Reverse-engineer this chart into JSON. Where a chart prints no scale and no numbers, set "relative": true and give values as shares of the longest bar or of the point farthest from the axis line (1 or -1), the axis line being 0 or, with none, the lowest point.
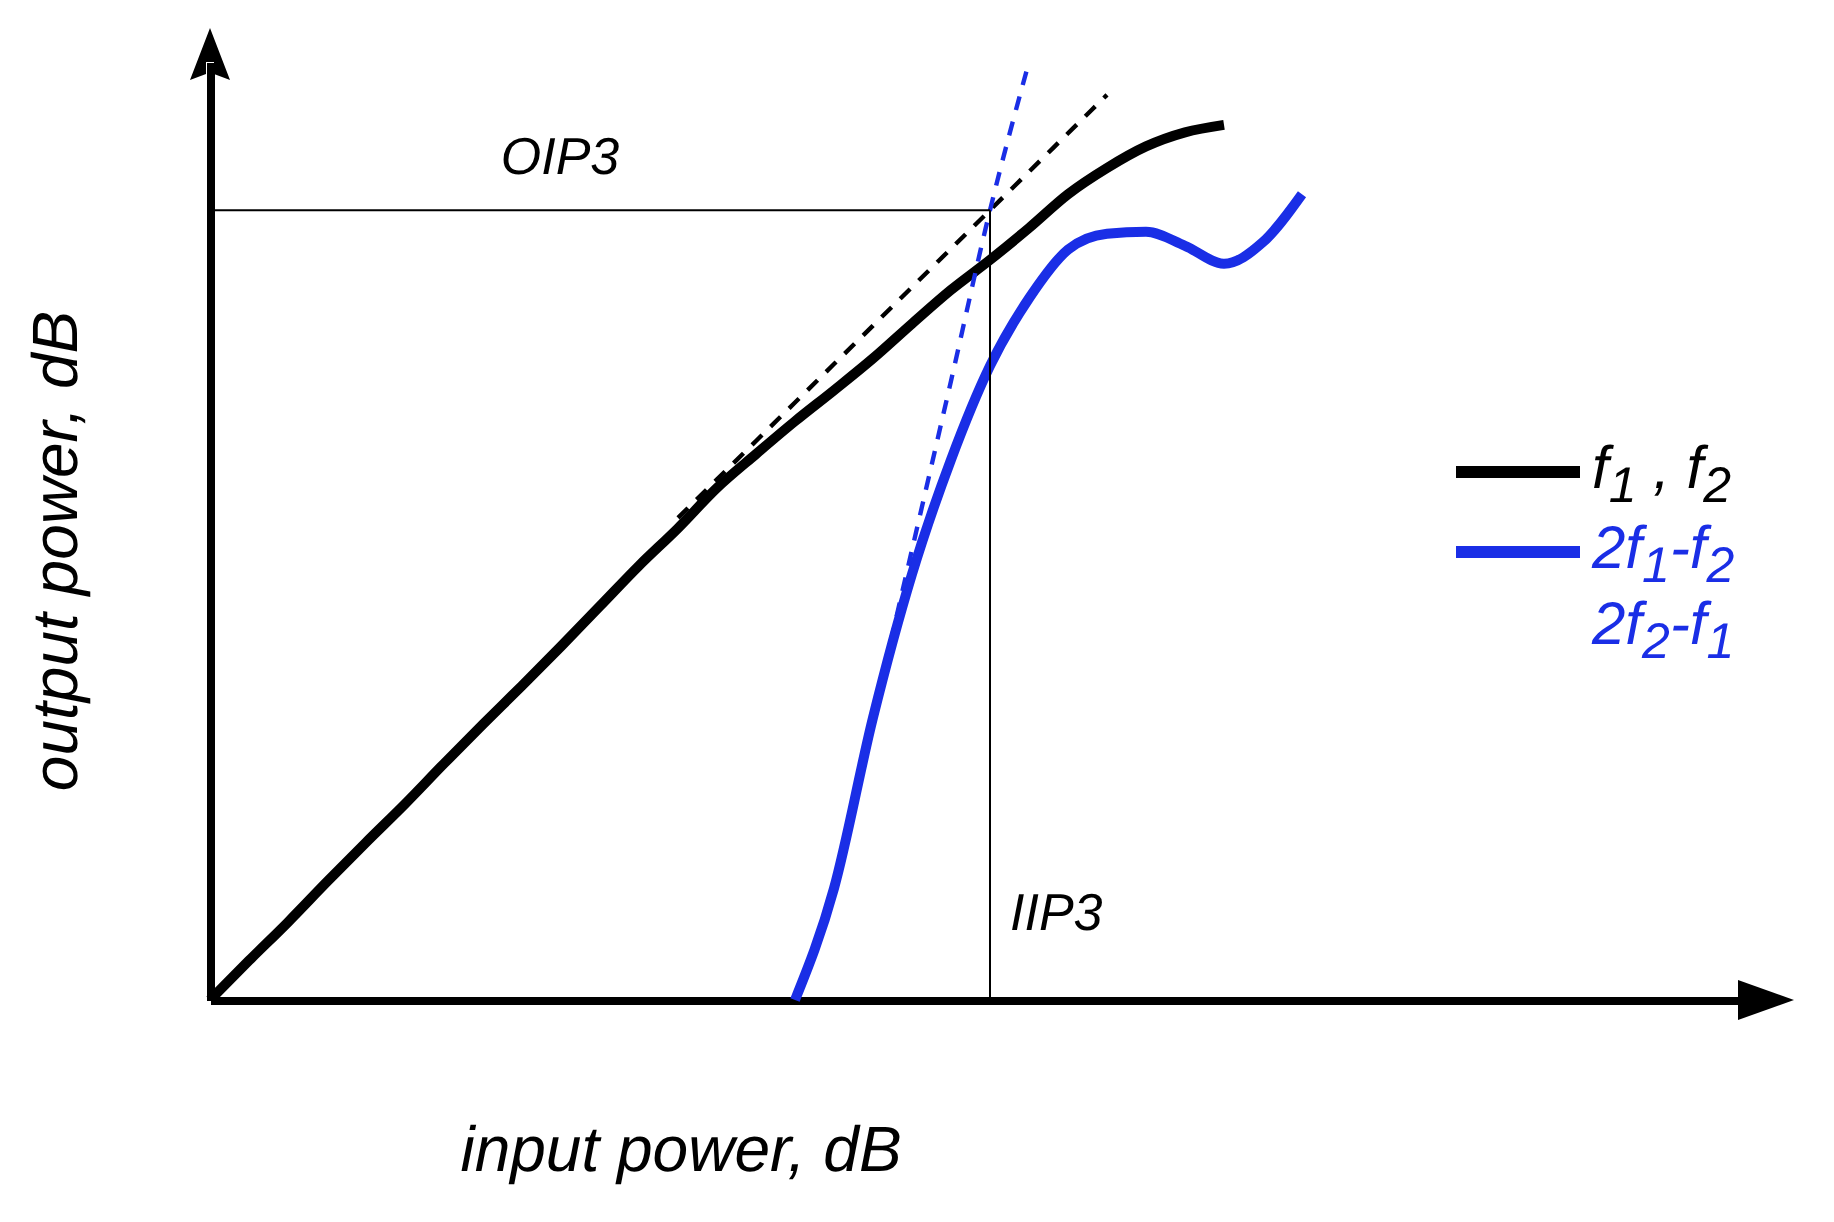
{
  "chart_data": {
    "type": "line",
    "relative": true,
    "xlabel": "input power, dB",
    "ylabel": "output power, dB",
    "tick_labels": false,
    "legend": "right",
    "marker": "none",
    "categories": [
      null,
      null,
      null,
      null,
      null,
      null,
      null,
      null,
      null,
      null,
      null,
      null,
      null,
      null,
      null,
      null,
      null,
      null,
      null,
      null,
      null,
      null,
      null,
      null,
      null,
      null,
      null,
      null,
      null,
      null,
      null,
      null,
      null,
      null,
      null,
      null,
      null,
      null,
      null,
      null,
      null
    ],
    "series": [
      {
        "name": "f$_{1}$ , f$_{2}$",
        "color": "#000000",
        "line_style": "solid",
        "values": [
          0,
          0.042,
          0.083,
          0.126,
          0.168,
          0.209,
          0.252,
          0.294,
          0.335,
          0.377,
          0.42,
          0.463,
          0.503,
          0.546,
          0.582,
          0.617,
          0.65,
          0.684,
          0.721,
          0.757,
          0.789,
          0.823,
          0.859,
          0.887,
          0.91,
          0.925,
          0.933,
          null,
          null,
          null,
          null,
          null,
          null,
          null,
          null,
          null,
          null,
          null,
          null,
          null,
          null
        ]
      },
      {
        "name": "2f$_{1}$-f$_{2}$\n2f$_{2}$-f$_{1}$",
        "color": "#1a2ee6",
        "line_style": "solid",
        "values": [
          null,
          null,
          null,
          null,
          null,
          null,
          null,
          null,
          null,
          null,
          null,
          null,
          null,
          null,
          null,
          0,
          0.119,
          0.301,
          0.454,
          0.576,
          0.676,
          0.748,
          0.8,
          0.817,
          0.819,
          0.804,
          0.785,
          0.808,
          0.859,
          null,
          null,
          null,
          null,
          null,
          null,
          null,
          null,
          null,
          null,
          null,
          null
        ]
      },
      {
        "color": "#000000",
        "line_style": "dashed",
        "values": [
          null,
          null,
          null,
          null,
          null,
          null,
          null,
          null,
          null,
          null,
          null,
          null,
          0.514,
          0.555,
          0.596,
          0.637,
          0.678,
          0.719,
          0.76,
          0.801,
          0.842,
          0.883,
          0.924,
          0.965,
          null,
          null,
          null,
          null,
          null,
          null,
          null,
          null,
          null,
          null,
          null,
          null,
          null,
          null,
          null,
          null,
          null
        ]
      },
      {
        "color": "#1a2ee6",
        "line_style": "dashed",
        "values": [
          null,
          null,
          null,
          null,
          null,
          null,
          null,
          null,
          null,
          null,
          null,
          null,
          null,
          null,
          null,
          null,
          null,
          0.301,
          0.48,
          0.66,
          0.842,
          1,
          null,
          null,
          null,
          null,
          null,
          null,
          null,
          null,
          null,
          null,
          null,
          null,
          null,
          null,
          null,
          null,
          null,
          null,
          null
        ]
      }
    ],
    "ref_lines": [
      {
        "axis": "y",
        "value": 0.842,
        "label": "OIP3"
      }
    ],
    "annotations": [
      "IIP3"
    ]
  }
}
